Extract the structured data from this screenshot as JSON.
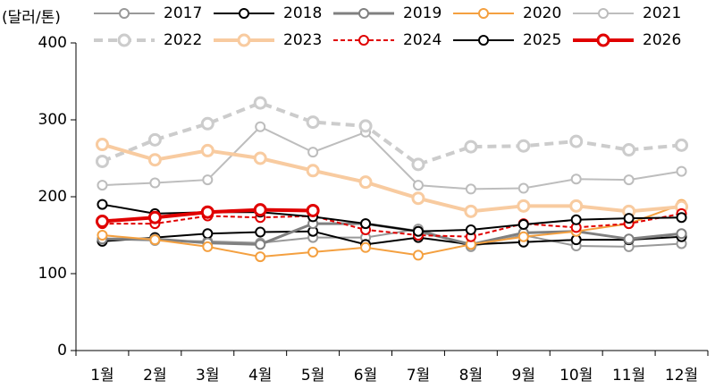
{
  "chart_data": {
    "type": "line",
    "y_label": "(달러/톤)",
    "categories": [
      "1월",
      "2월",
      "3월",
      "4월",
      "5월",
      "6월",
      "7월",
      "8월",
      "9월",
      "10월",
      "11월",
      "12월"
    ],
    "ylim": [
      0,
      400
    ],
    "yticks": [
      0,
      100,
      200,
      300,
      400
    ],
    "series": [
      {
        "name": "2017",
        "color": "#999999",
        "width": 2,
        "dash": false,
        "values": [
          145,
          143,
          142,
          140,
          147,
          147,
          158,
          135,
          150,
          136,
          135,
          139
        ]
      },
      {
        "name": "2018",
        "color": "#000000",
        "width": 2,
        "dash": false,
        "values": [
          142,
          147,
          152,
          154,
          155,
          138,
          147,
          138,
          141,
          144,
          144,
          148
        ]
      },
      {
        "name": "2019",
        "color": "#808080",
        "width": 3,
        "dash": false,
        "values": [
          145,
          145,
          140,
          138,
          165,
          165,
          155,
          138,
          153,
          155,
          145,
          152
        ]
      },
      {
        "name": "2020",
        "color": "#f4a040",
        "width": 2,
        "dash": false,
        "values": [
          150,
          144,
          135,
          122,
          128,
          134,
          124,
          138,
          148,
          155,
          165,
          190
        ]
      },
      {
        "name": "2021",
        "color": "#bdbdbd",
        "width": 2,
        "dash": false,
        "values": [
          215,
          218,
          222,
          291,
          258,
          284,
          215,
          210,
          211,
          223,
          222,
          233
        ]
      },
      {
        "name": "2022",
        "color": "#cccccc",
        "width": 4,
        "dash": true,
        "values": [
          246,
          274,
          295,
          322,
          297,
          292,
          242,
          265,
          266,
          272,
          261,
          267
        ]
      },
      {
        "name": "2023",
        "color": "#f8cba0",
        "width": 4,
        "dash": false,
        "values": [
          268,
          248,
          260,
          250,
          234,
          219,
          198,
          181,
          188,
          188,
          181,
          187
        ]
      },
      {
        "name": "2024",
        "color": "#e00000",
        "width": 2,
        "dash": true,
        "values": [
          165,
          165,
          175,
          173,
          175,
          157,
          150,
          148,
          165,
          160,
          165,
          178
        ]
      },
      {
        "name": "2025",
        "color": "#000000",
        "width": 2,
        "dash": false,
        "values": [
          190,
          178,
          180,
          180,
          174,
          165,
          155,
          157,
          164,
          170,
          172,
          173
        ]
      },
      {
        "name": "2026",
        "color": "#e00000",
        "width": 4,
        "dash": false,
        "values": [
          168,
          173,
          180,
          183,
          182,
          null,
          null,
          null,
          null,
          null,
          null,
          null
        ]
      }
    ]
  }
}
